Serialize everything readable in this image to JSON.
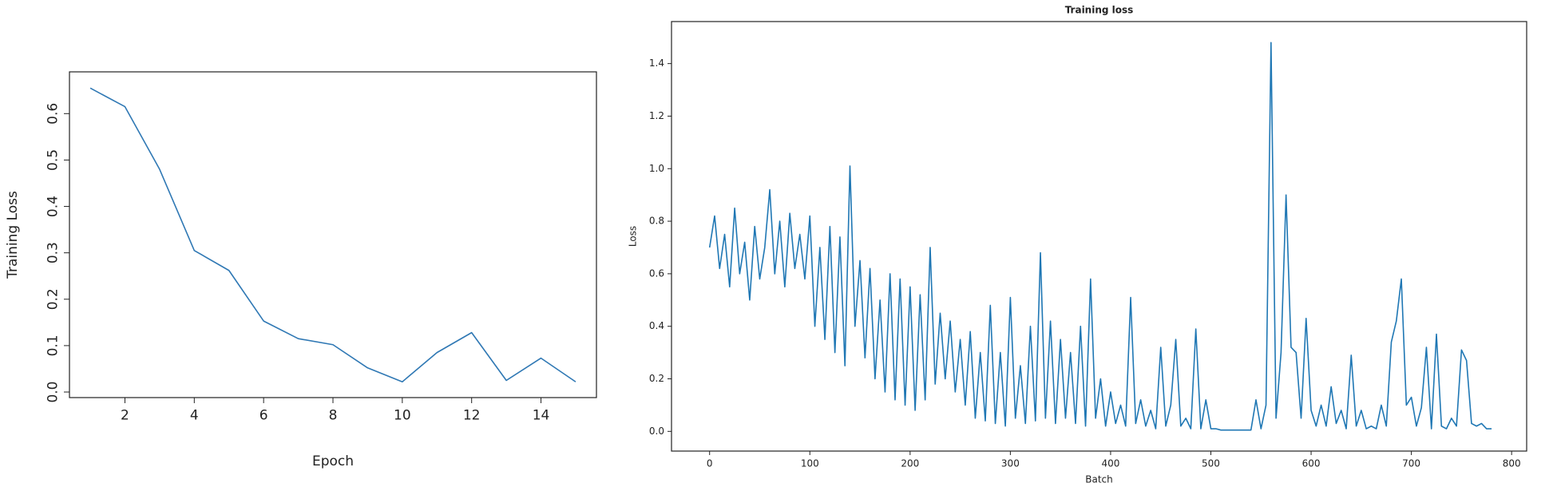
{
  "chart_data": [
    {
      "type": "line",
      "xlabel": "Epoch",
      "ylabel": "Training Loss",
      "color": "#2f78b4",
      "x": [
        1,
        2,
        3,
        4,
        5,
        6,
        7,
        8,
        9,
        10,
        11,
        12,
        13,
        14,
        15
      ],
      "values": [
        0.655,
        0.615,
        0.48,
        0.305,
        0.262,
        0.153,
        0.115,
        0.102,
        0.052,
        0.022,
        0.085,
        0.128,
        0.025,
        0.073,
        0.022
      ],
      "xlim": [
        0.4,
        15.6
      ],
      "ylim": [
        -0.012,
        0.69
      ],
      "xticks": [
        2,
        4,
        6,
        8,
        10,
        12,
        14
      ],
      "yticks": [
        {
          "value": 0,
          "label": "0.0"
        },
        0.1,
        0.2,
        0.3,
        0.4,
        0.5,
        0.6
      ]
    },
    {
      "type": "line",
      "title": "Training loss",
      "xlabel": "Batch",
      "ylabel": "Loss",
      "color": "#1f77b4",
      "x": [
        0,
        5,
        10,
        15,
        20,
        25,
        30,
        35,
        40,
        45,
        50,
        55,
        60,
        65,
        70,
        75,
        80,
        85,
        90,
        95,
        100,
        105,
        110,
        115,
        120,
        125,
        130,
        135,
        140,
        145,
        150,
        155,
        160,
        165,
        170,
        175,
        180,
        185,
        190,
        195,
        200,
        205,
        210,
        215,
        220,
        225,
        230,
        235,
        240,
        245,
        250,
        255,
        260,
        265,
        270,
        275,
        280,
        285,
        290,
        295,
        300,
        305,
        310,
        315,
        320,
        325,
        330,
        335,
        340,
        345,
        350,
        355,
        360,
        365,
        370,
        375,
        380,
        385,
        390,
        395,
        400,
        405,
        410,
        415,
        420,
        425,
        430,
        435,
        440,
        445,
        450,
        455,
        460,
        465,
        470,
        475,
        480,
        485,
        490,
        495,
        500,
        505,
        510,
        515,
        520,
        525,
        530,
        535,
        540,
        545,
        550,
        555,
        560,
        565,
        570,
        575,
        580,
        585,
        590,
        595,
        600,
        605,
        610,
        615,
        620,
        625,
        630,
        635,
        640,
        645,
        650,
        655,
        660,
        665,
        670,
        675,
        680,
        685,
        690,
        695,
        700,
        705,
        710,
        715,
        720,
        725,
        730,
        735,
        740,
        745,
        750,
        755,
        760,
        765,
        770,
        775,
        780
      ],
      "values": [
        0.7,
        0.82,
        0.62,
        0.75,
        0.55,
        0.85,
        0.6,
        0.72,
        0.5,
        0.78,
        0.58,
        0.7,
        0.92,
        0.6,
        0.8,
        0.55,
        0.83,
        0.62,
        0.75,
        0.58,
        0.82,
        0.4,
        0.7,
        0.35,
        0.78,
        0.3,
        0.74,
        0.25,
        1.01,
        0.4,
        0.65,
        0.28,
        0.62,
        0.2,
        0.5,
        0.15,
        0.6,
        0.12,
        0.58,
        0.1,
        0.55,
        0.08,
        0.52,
        0.12,
        0.7,
        0.18,
        0.45,
        0.2,
        0.42,
        0.15,
        0.35,
        0.1,
        0.38,
        0.05,
        0.3,
        0.04,
        0.48,
        0.03,
        0.3,
        0.02,
        0.51,
        0.05,
        0.25,
        0.03,
        0.4,
        0.04,
        0.68,
        0.05,
        0.42,
        0.03,
        0.35,
        0.05,
        0.3,
        0.03,
        0.4,
        0.02,
        0.58,
        0.05,
        0.2,
        0.02,
        0.15,
        0.03,
        0.1,
        0.02,
        0.51,
        0.03,
        0.12,
        0.02,
        0.08,
        0.01,
        0.32,
        0.02,
        0.1,
        0.35,
        0.02,
        0.05,
        0.01,
        0.39,
        0.01,
        0.12,
        0.01,
        0.01,
        0.005,
        0.005,
        0.005,
        0.005,
        0.005,
        0.005,
        0.005,
        0.12,
        0.01,
        0.1,
        1.48,
        0.05,
        0.3,
        0.9,
        0.32,
        0.3,
        0.05,
        0.43,
        0.08,
        0.02,
        0.1,
        0.02,
        0.17,
        0.03,
        0.08,
        0.01,
        0.29,
        0.02,
        0.08,
        0.01,
        0.02,
        0.01,
        0.1,
        0.02,
        0.34,
        0.42,
        0.58,
        0.1,
        0.13,
        0.02,
        0.09,
        0.32,
        0.01,
        0.37,
        0.02,
        0.01,
        0.05,
        0.02,
        0.31,
        0.27,
        0.03,
        0.02,
        0.03,
        0.01,
        0.01
      ],
      "xlim": [
        -38,
        815
      ],
      "ylim": [
        -0.075,
        1.56
      ],
      "xticks": [
        0,
        100,
        200,
        300,
        400,
        500,
        600,
        700,
        800
      ],
      "yticks": [
        {
          "value": 0,
          "label": "0.0"
        },
        0.2,
        0.4,
        0.6,
        0.8,
        {
          "value": 1,
          "label": "1.0"
        },
        1.2,
        1.4
      ]
    }
  ]
}
